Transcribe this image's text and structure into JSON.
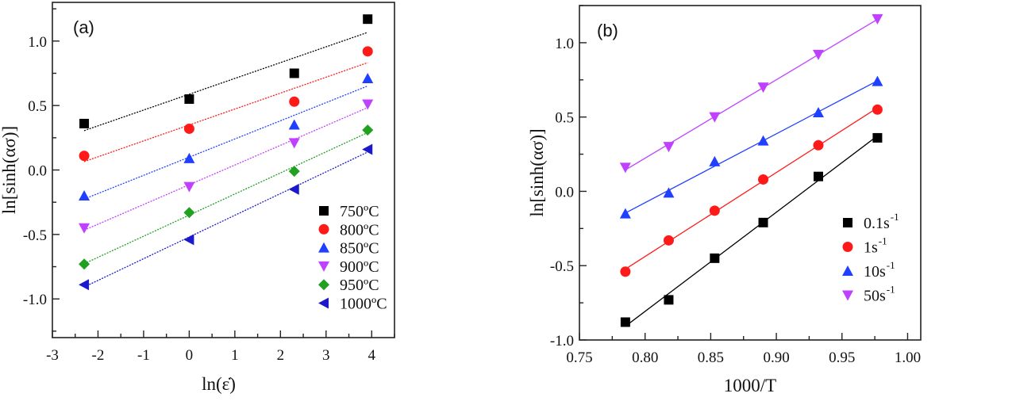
{
  "chart_data": [
    {
      "type": "scatter",
      "panel_label": "(a)",
      "xlabel": "ln(ε̇)",
      "ylabel": "ln[sinh(ασ)]",
      "xlim": [
        -3,
        4.5
      ],
      "ylim": [
        -1.3,
        1.3
      ],
      "xticks": [
        -3,
        -2,
        -1,
        0,
        1,
        2,
        3,
        4
      ],
      "xtick_labels": [
        "-3",
        "-2",
        "-1",
        "0",
        "1",
        "2",
        "3",
        "4"
      ],
      "yticks": [
        -1.0,
        -0.5,
        0.0,
        0.5,
        1.0
      ],
      "ytick_labels": [
        "-1.0",
        "-0.5",
        "0.0",
        "0.5",
        "1.0"
      ],
      "grid": false,
      "fit_lines": "linear, dotted",
      "legend_position": "bottom-right",
      "x": [
        -2.303,
        0,
        2.303,
        3.912
      ],
      "series": [
        {
          "name": "750ºC",
          "color": "#000000",
          "marker": "square",
          "values": [
            0.36,
            0.55,
            0.75,
            1.17
          ]
        },
        {
          "name": "800ºC",
          "color": "#ff1a1a",
          "marker": "circle",
          "values": [
            0.11,
            0.32,
            0.53,
            0.92
          ]
        },
        {
          "name": "850ºC",
          "color": "#2040ff",
          "marker": "triangle-up",
          "values": [
            -0.2,
            0.09,
            0.35,
            0.71
          ]
        },
        {
          "name": "900ºC",
          "color": "#c040ff",
          "marker": "triangle-down",
          "values": [
            -0.45,
            -0.13,
            0.21,
            0.51
          ]
        },
        {
          "name": "950ºC",
          "color": "#22a022",
          "marker": "diamond",
          "values": [
            -0.73,
            -0.33,
            -0.01,
            0.31
          ]
        },
        {
          "name": "1000ºC",
          "color": "#1a1acc",
          "marker": "triangle-left",
          "values": [
            -0.89,
            -0.54,
            -0.15,
            0.16
          ]
        }
      ]
    },
    {
      "type": "scatter",
      "panel_label": "(b)",
      "xlabel": "1000/T",
      "ylabel": "ln[sinh(ασ)]",
      "xlim": [
        0.75,
        1.01
      ],
      "ylim": [
        -1.0,
        1.25
      ],
      "xticks": [
        0.75,
        0.8,
        0.85,
        0.9,
        0.95,
        1.0
      ],
      "xtick_labels": [
        "0.75",
        "0.80",
        "0.85",
        "0.90",
        "0.95",
        "1.00"
      ],
      "yticks": [
        -1.0,
        -0.5,
        0.0,
        0.5,
        1.0
      ],
      "ytick_labels": [
        "-1.0",
        "-0.5",
        "0.0",
        "0.5",
        "1.0"
      ],
      "grid": false,
      "fit_lines": "linear, solid",
      "legend_position": "bottom-right",
      "x": [
        0.785,
        0.818,
        0.853,
        0.89,
        0.932,
        0.977
      ],
      "series": [
        {
          "name": "0.1s⁻¹",
          "name_base": "0.1s",
          "name_sup": "-1",
          "color": "#000000",
          "marker": "square",
          "values": [
            -0.88,
            -0.73,
            -0.45,
            -0.21,
            0.1,
            0.36
          ]
        },
        {
          "name": "1s⁻¹",
          "name_base": "1s",
          "name_sup": "-1",
          "color": "#ff1a1a",
          "marker": "circle",
          "values": [
            -0.54,
            -0.33,
            -0.13,
            0.08,
            0.31,
            0.55
          ]
        },
        {
          "name": "10s⁻¹",
          "name_base": "10s",
          "name_sup": "-1",
          "color": "#2040ff",
          "marker": "triangle-up",
          "values": [
            -0.15,
            -0.01,
            0.2,
            0.34,
            0.53,
            0.74
          ]
        },
        {
          "name": "50s⁻¹",
          "name_base": "50s",
          "name_sup": "-1",
          "color": "#c040ff",
          "marker": "triangle-down",
          "values": [
            0.16,
            0.3,
            0.5,
            0.7,
            0.92,
            1.16
          ]
        }
      ]
    }
  ]
}
